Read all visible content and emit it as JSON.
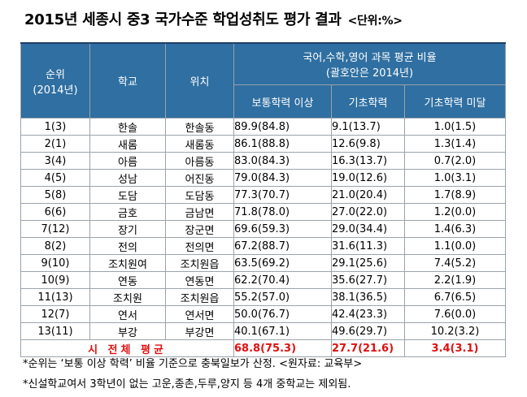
{
  "title": "2015년 세종시 중3 국가수준 학업성취도 평가 결과",
  "unit": "<단위:%>",
  "table": {
    "headers": {
      "rank": "순위",
      "rank_year": "(2014년)",
      "school": "학교",
      "location": "위치",
      "group": "국어,수학,영어 과목 평균 비율",
      "group_sub": "(괄호안은 2014년)",
      "col_above": "보통학력 이상",
      "col_basic": "기초학력",
      "col_below": "기초학력 미달"
    },
    "rows": [
      {
        "rank": "1(3)",
        "school": "한솔",
        "location": "한솔동",
        "above": "89.9(84.8)",
        "basic": "9.1(13.7)",
        "below": "1.0(1.5)"
      },
      {
        "rank": "2(1)",
        "school": "새롬",
        "location": "새롬동",
        "above": "86.1(88.8)",
        "basic": "12.6(9.8)",
        "below": "1.3(1.4)"
      },
      {
        "rank": "3(4)",
        "school": "아름",
        "location": "아름동",
        "above": "83.0(84.3)",
        "basic": "16.3(13.7)",
        "below": "0.7(2.0)"
      },
      {
        "rank": "4(5)",
        "school": "성남",
        "location": "어진동",
        "above": "79.0(84.3)",
        "basic": "19.0(12.6)",
        "below": "1.0(3.1)"
      },
      {
        "rank": "5(8)",
        "school": "도담",
        "location": "도담동",
        "above": "77.3(70.7)",
        "basic": "21.0(20.4)",
        "below": "1.7(8.9)"
      },
      {
        "rank": "6(6)",
        "school": "금호",
        "location": "금남면",
        "above": "71.8(78.0)",
        "basic": "27.0(22.0)",
        "below": "1.2(0.0)"
      },
      {
        "rank": "7(12)",
        "school": "장기",
        "location": "장군면",
        "above": "69.6(59.3)",
        "basic": "29.0(34.4)",
        "below": "1.4(6.3)"
      },
      {
        "rank": "8(2)",
        "school": "전의",
        "location": "전의면",
        "above": "67.2(88.7)",
        "basic": "31.6(11.3)",
        "below": "1.1(0.0)"
      },
      {
        "rank": "9(10)",
        "school": "조치원여",
        "location": "조치원읍",
        "above": "63.5(69.2)",
        "basic": "29.1(25.6)",
        "below": "7.4(5.2)"
      },
      {
        "rank": "10(9)",
        "school": "연동",
        "location": "연동면",
        "above": "62.2(70.4)",
        "basic": "35.6(27.7)",
        "below": "2.2(1.9)"
      },
      {
        "rank": "11(13)",
        "school": "조치원",
        "location": "조치원읍",
        "above": "55.2(57.0)",
        "basic": "38.1(36.5)",
        "below": "6.7(6.5)"
      },
      {
        "rank": "12(7)",
        "school": "연서",
        "location": "연서면",
        "above": "50.0(76.7)",
        "basic": "42.4(23.3)",
        "below": "7.6(0.0)"
      },
      {
        "rank": "13(11)",
        "school": "부강",
        "location": "부강면",
        "above": "40.1(67.1)",
        "basic": "49.6(29.7)",
        "below": "10.2(3.2)"
      }
    ],
    "total": {
      "label": "시 전체 평균",
      "above": "68.8(75.3)",
      "basic": "27.7(21.6)",
      "below": "3.4(3.1)"
    }
  },
  "notes": [
    "*순위는 ‘보통 이상 학력’ 비율 기준으로 충북일보가 산정. <원자료: 교육부>",
    "*신설학교여서 3학년이 없는 고운,종촌,두루,양지 등 4개 중학교는 제외됨."
  ],
  "colors": {
    "header_bg": "#2f6fa1",
    "total_text": "#e01010",
    "border": "#9aa3ad"
  }
}
